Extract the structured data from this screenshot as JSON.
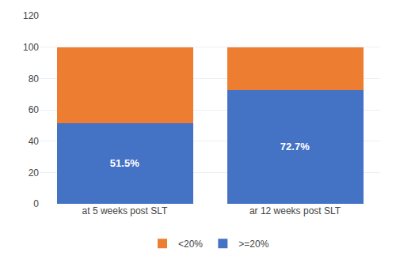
{
  "chart_data": {
    "type": "bar",
    "stacked": true,
    "categories": [
      "at 5 weeks post SLT",
      "ar 12 weeks post SLT"
    ],
    "series": [
      {
        "name": ">=20%",
        "color": "#4472C4",
        "values": [
          51.5,
          72.7
        ],
        "value_labels": [
          "51.5%",
          "72.7%"
        ],
        "data_labels": true
      },
      {
        "name": "<20%",
        "color": "#ED7D31",
        "values": [
          48.5,
          27.3
        ]
      }
    ],
    "ylim": [
      0,
      120
    ],
    "yticks": [
      0,
      20,
      40,
      60,
      80,
      100,
      120
    ],
    "grid": true,
    "legend": "bottom"
  }
}
